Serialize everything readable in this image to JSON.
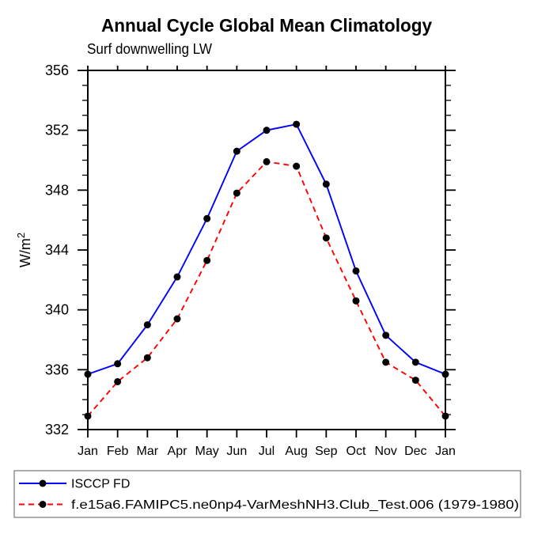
{
  "chart_data": {
    "type": "line",
    "title": "Annual Cycle Global Mean Climatology",
    "subtitle": "Surf downwelling LW",
    "ylabel": "W/m²",
    "ylabel_base": "W/m",
    "ylabel_sup": "2",
    "categories": [
      "Jan",
      "Feb",
      "Mar",
      "Apr",
      "May",
      "Jun",
      "Jul",
      "Aug",
      "Sep",
      "Oct",
      "Nov",
      "Dec",
      "Jan"
    ],
    "series": [
      {
        "name": "ISCCP FD",
        "color": "#0000ff",
        "line_style": "solid",
        "marker": "circle",
        "marker_color": "#000000",
        "values": [
          335.7,
          336.4,
          339.0,
          342.2,
          346.1,
          350.6,
          352.0,
          352.4,
          348.4,
          342.6,
          338.3,
          336.5,
          335.7
        ]
      },
      {
        "name": "f.e15a6.FAMIPC5.ne0np4-VarMeshNH3.Club_Test.006 (1979-1980)",
        "color": "#ff0000",
        "line_style": "dashed",
        "marker": "circle",
        "marker_color": "#000000",
        "values": [
          332.9,
          335.2,
          336.8,
          339.4,
          343.3,
          347.8,
          349.9,
          349.6,
          344.8,
          340.6,
          336.5,
          335.3,
          332.9
        ]
      }
    ],
    "ylim": [
      332,
      356
    ],
    "y_major_step": 4,
    "y_minor_step": 1,
    "y_major_ticks": [
      "332",
      "336",
      "340",
      "344",
      "348",
      "352",
      "356"
    ],
    "grid": false,
    "legend_position": "bottom-left-box",
    "axis_color": "#000000",
    "background_color": "#ffffff"
  }
}
